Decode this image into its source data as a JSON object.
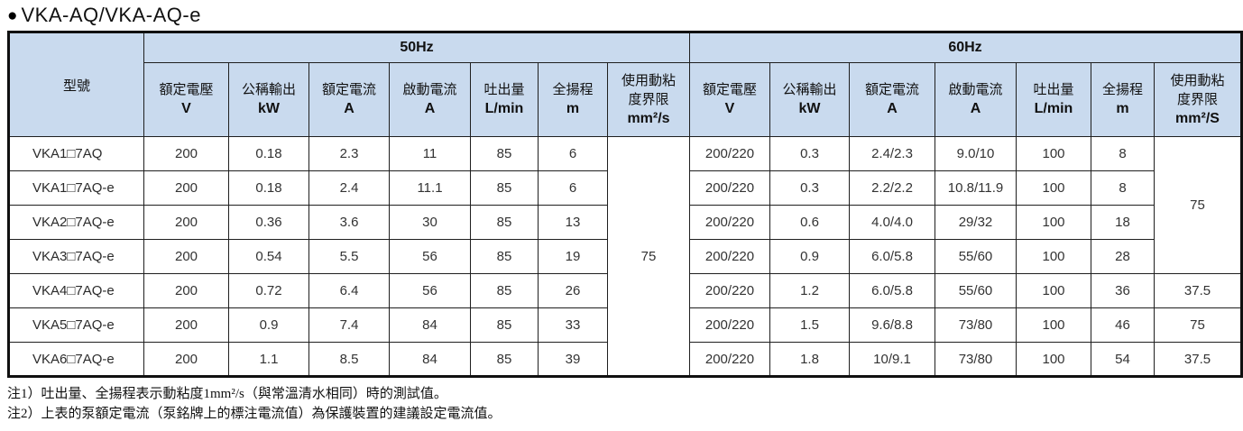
{
  "page_title": "VKA-AQ/VKA-AQ-e",
  "title_bullet": "●",
  "colors": {
    "header_bg": "#c9daee",
    "border": "#1f1f1f",
    "text": "#333333"
  },
  "table": {
    "model_header": "型號",
    "groups": [
      {
        "label": "50Hz"
      },
      {
        "label": "60Hz"
      }
    ],
    "columns_50hz": [
      {
        "label_lines": [
          "額定電壓"
        ],
        "unit": "V"
      },
      {
        "label_lines": [
          "公稱輸出"
        ],
        "unit": "kW"
      },
      {
        "label_lines": [
          "額定電流"
        ],
        "unit": "A"
      },
      {
        "label_lines": [
          "啟動電流"
        ],
        "unit": "A"
      },
      {
        "label_lines": [
          "吐出量"
        ],
        "unit": "L/min"
      },
      {
        "label_lines": [
          "全揚程"
        ],
        "unit": "m"
      },
      {
        "label_lines": [
          "使用動粘",
          "度界限"
        ],
        "unit": "mm²/s"
      }
    ],
    "columns_60hz": [
      {
        "label_lines": [
          "額定電壓"
        ],
        "unit": "V"
      },
      {
        "label_lines": [
          "公稱輸出"
        ],
        "unit": "kW"
      },
      {
        "label_lines": [
          "額定電流"
        ],
        "unit": "A"
      },
      {
        "label_lines": [
          "啟動電流"
        ],
        "unit": "A"
      },
      {
        "label_lines": [
          "吐出量"
        ],
        "unit": "L/min"
      },
      {
        "label_lines": [
          "全揚程"
        ],
        "unit": "m"
      },
      {
        "label_lines": [
          "使用動粘",
          "度界限"
        ],
        "unit": "mm²/S"
      }
    ],
    "rows": [
      {
        "model": "VKA1□7AQ",
        "hz50": [
          "200",
          "0.18",
          "2.3",
          "11",
          "85",
          "6"
        ],
        "hz60": [
          "200/220",
          "0.3",
          "2.4/2.3",
          "9.0/10",
          "100",
          "8"
        ]
      },
      {
        "model": "VKA1□7AQ-e",
        "hz50": [
          "200",
          "0.18",
          "2.4",
          "11.1",
          "85",
          "6"
        ],
        "hz60": [
          "200/220",
          "0.3",
          "2.2/2.2",
          "10.8/11.9",
          "100",
          "8"
        ]
      },
      {
        "model": "VKA2□7AQ-e",
        "hz50": [
          "200",
          "0.36",
          "3.6",
          "30",
          "85",
          "13"
        ],
        "hz60": [
          "200/220",
          "0.6",
          "4.0/4.0",
          "29/32",
          "100",
          "18"
        ]
      },
      {
        "model": "VKA3□7AQ-e",
        "hz50": [
          "200",
          "0.54",
          "5.5",
          "56",
          "85",
          "19"
        ],
        "hz60": [
          "200/220",
          "0.9",
          "6.0/5.8",
          "55/60",
          "100",
          "28"
        ]
      },
      {
        "model": "VKA4□7AQ-e",
        "hz50": [
          "200",
          "0.72",
          "6.4",
          "56",
          "85",
          "26"
        ],
        "hz60": [
          "200/220",
          "1.2",
          "6.0/5.8",
          "55/60",
          "100",
          "36"
        ]
      },
      {
        "model": "VKA5□7AQ-e",
        "hz50": [
          "200",
          "0.9",
          "7.4",
          "84",
          "85",
          "33"
        ],
        "hz60": [
          "200/220",
          "1.5",
          "9.6/8.8",
          "73/80",
          "100",
          "46"
        ]
      },
      {
        "model": "VKA6□7AQ-e",
        "hz50": [
          "200",
          "1.1",
          "8.5",
          "84",
          "85",
          "39"
        ],
        "hz60": [
          "200/220",
          "1.8",
          "10/9.1",
          "73/80",
          "100",
          "54"
        ]
      }
    ],
    "viscosity_50hz_cells": [
      {
        "row": 0,
        "rowspan": 7,
        "value": "75"
      }
    ],
    "viscosity_60hz_cells": [
      {
        "row": 0,
        "rowspan": 4,
        "value": "75"
      },
      {
        "row": 4,
        "rowspan": 1,
        "value": "37.5"
      },
      {
        "row": 5,
        "rowspan": 1,
        "value": "75"
      },
      {
        "row": 6,
        "rowspan": 1,
        "value": "37.5"
      }
    ]
  },
  "notes": [
    "注1）吐出量、全揚程表示動粘度1mm²/s（與常溫清水相同）時的測試值。",
    "注2）上表的泵額定電流（泵銘牌上的標注電流值）為保護裝置的建議設定電流值。"
  ]
}
